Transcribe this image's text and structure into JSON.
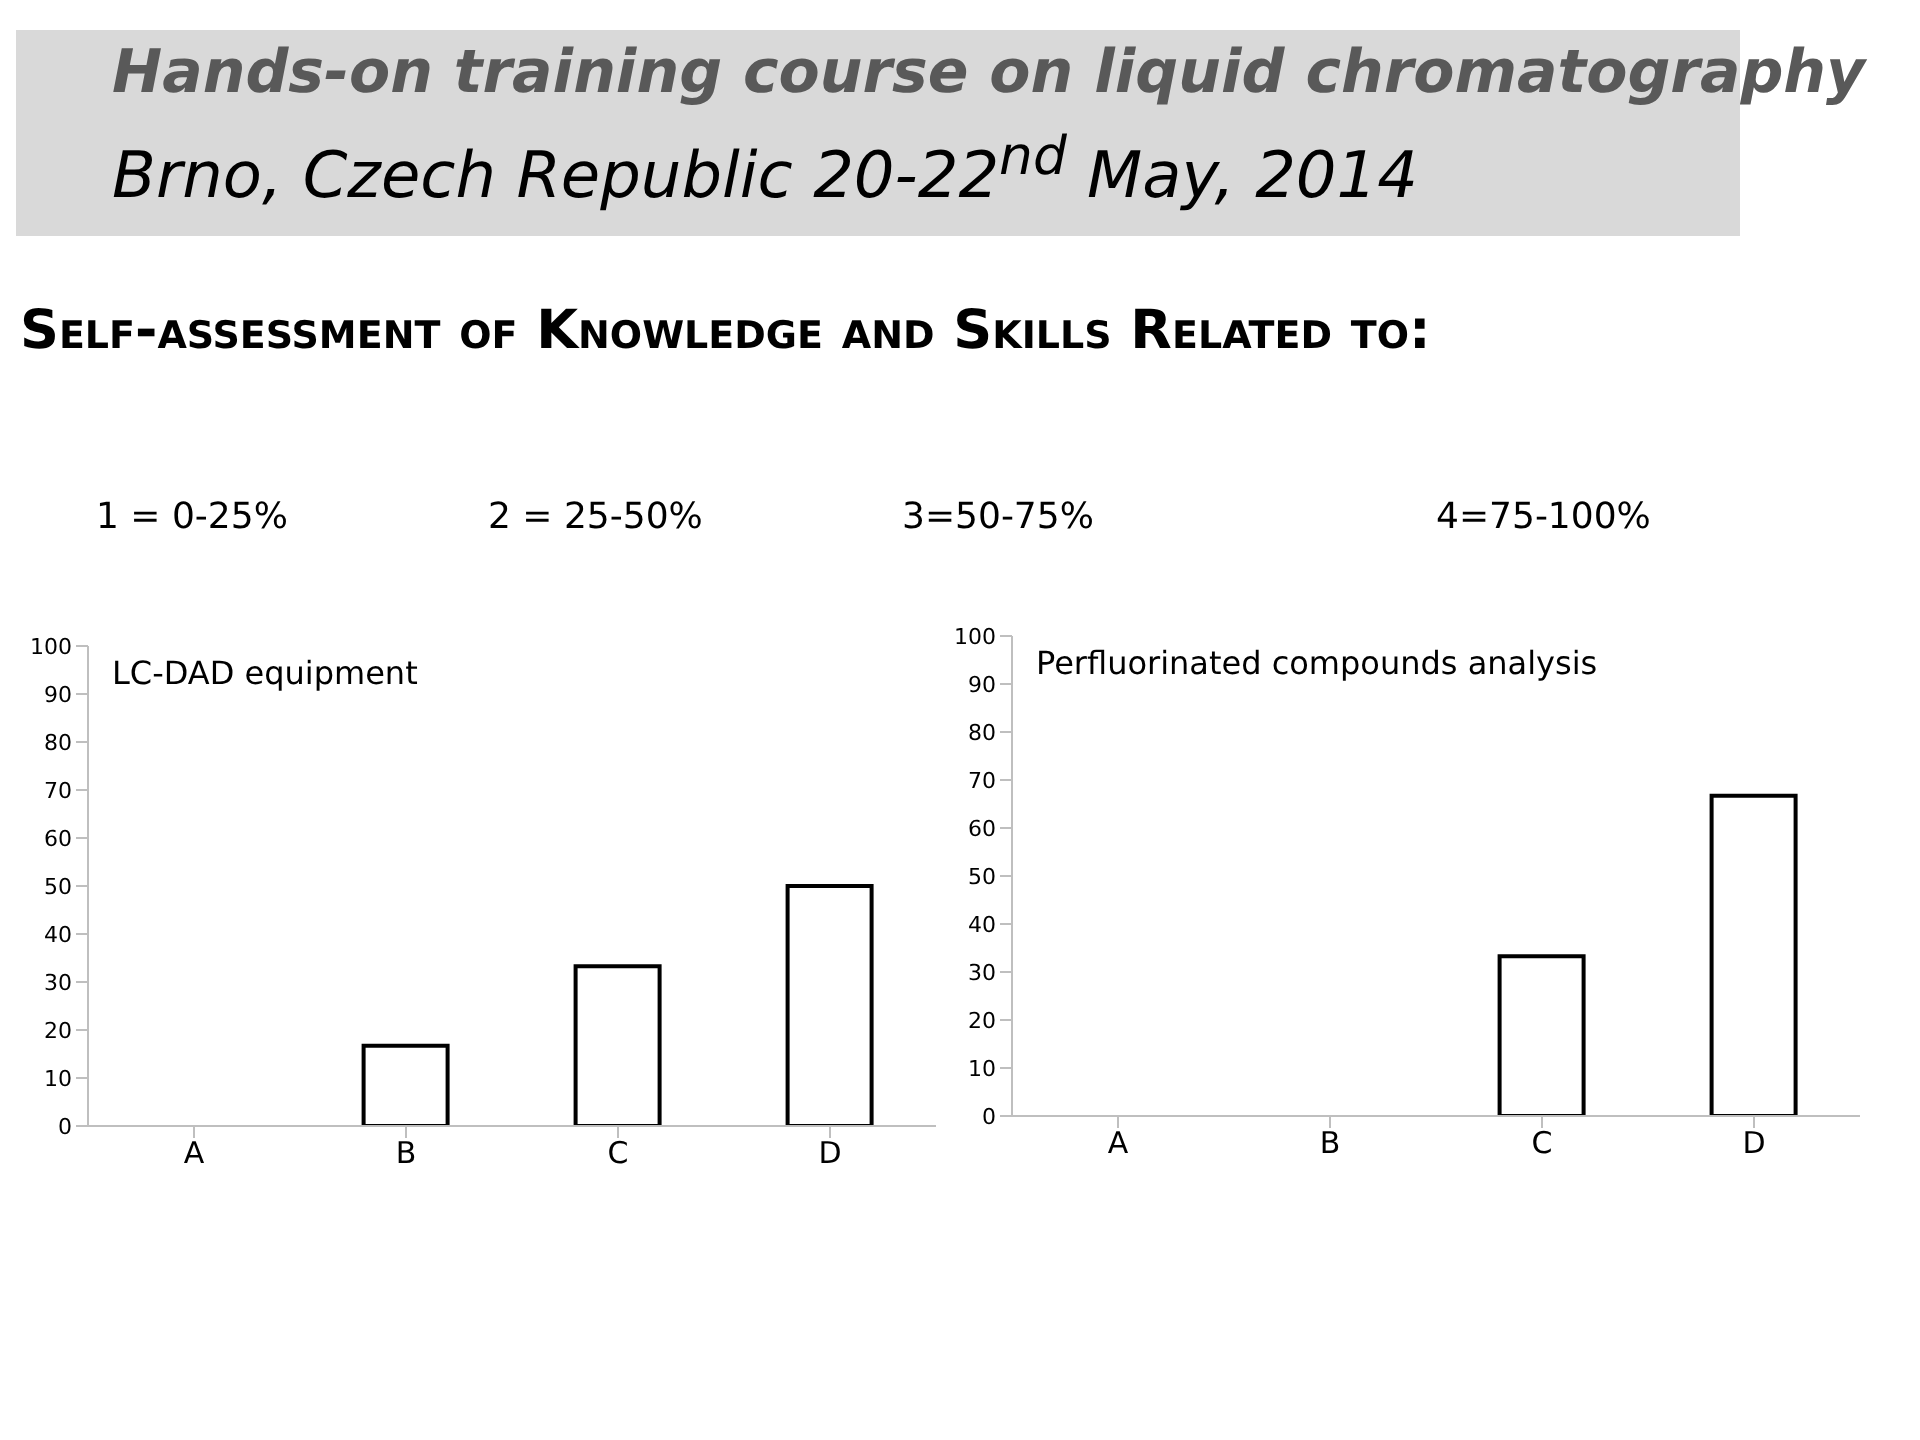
{
  "chart_data": [
    {
      "type": "other",
      "title": "Hands-on training course on liquid chromatography",
      "subtitle": "Brno, Czech Republic 20-22$^{nd}$ May, 2014",
      "annotations": [
        "Self-assessment of Knowledge and Skills Related to:",
        "1 = 0-25%",
        "2 = 25-50%",
        "3=50-75%",
        "4=75-100%"
      ]
    },
    {
      "type": "bar",
      "title": "LC-DAD equipment",
      "categories": [
        "A",
        "B",
        "C",
        "D"
      ],
      "values": [
        0,
        16.7,
        33.3,
        50
      ],
      "color": "#ffffff",
      "ylim": [
        0,
        100
      ],
      "yticks": [
        0,
        10,
        20,
        30,
        40,
        50,
        60,
        70,
        80,
        90,
        100
      ],
      "grid": false
    },
    {
      "type": "bar",
      "title": "Perfluorinated  compounds analysis",
      "categories": [
        "A",
        "B",
        "C",
        "D"
      ],
      "values": [
        0,
        0,
        33.3,
        66.7
      ],
      "color": "#ffffff",
      "ylim": [
        0,
        100
      ],
      "yticks": [
        0,
        10,
        20,
        30,
        40,
        50,
        60,
        70,
        80,
        90,
        100
      ],
      "grid": false
    }
  ]
}
